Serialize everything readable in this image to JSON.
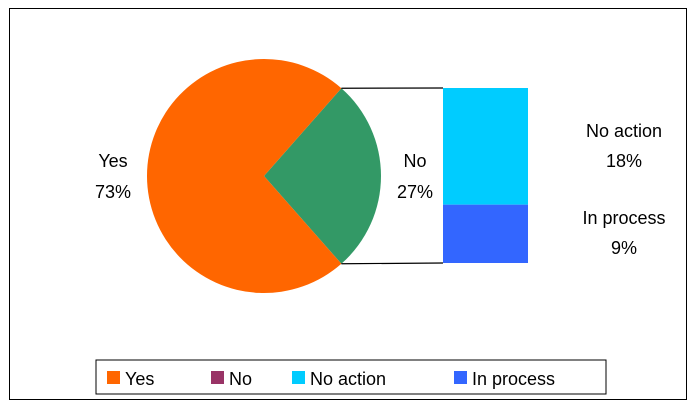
{
  "chart_data": {
    "type": "pie",
    "subtype": "bar-of-pie",
    "title": "",
    "slices": [
      {
        "label": "Yes",
        "value": 73,
        "percent_label": "73%",
        "color": "#FF6600"
      },
      {
        "label": "No",
        "value": 27,
        "percent_label": "27%",
        "color": "#339966"
      }
    ],
    "breakdown": {
      "of": "No",
      "segments": [
        {
          "label": "No action",
          "value": 18,
          "percent_label": "18%",
          "color": "#00CCFF"
        },
        {
          "label": "In process",
          "value": 9,
          "percent_label": "9%",
          "color": "#3366FF"
        }
      ]
    },
    "legend": {
      "position": "bottom",
      "entries": [
        {
          "label": "Yes",
          "color": "#FF6600"
        },
        {
          "label": "No",
          "color": "#993366"
        },
        {
          "label": "No action",
          "color": "#00CCFF"
        },
        {
          "label": "In process",
          "color": "#3366FF"
        }
      ]
    }
  }
}
